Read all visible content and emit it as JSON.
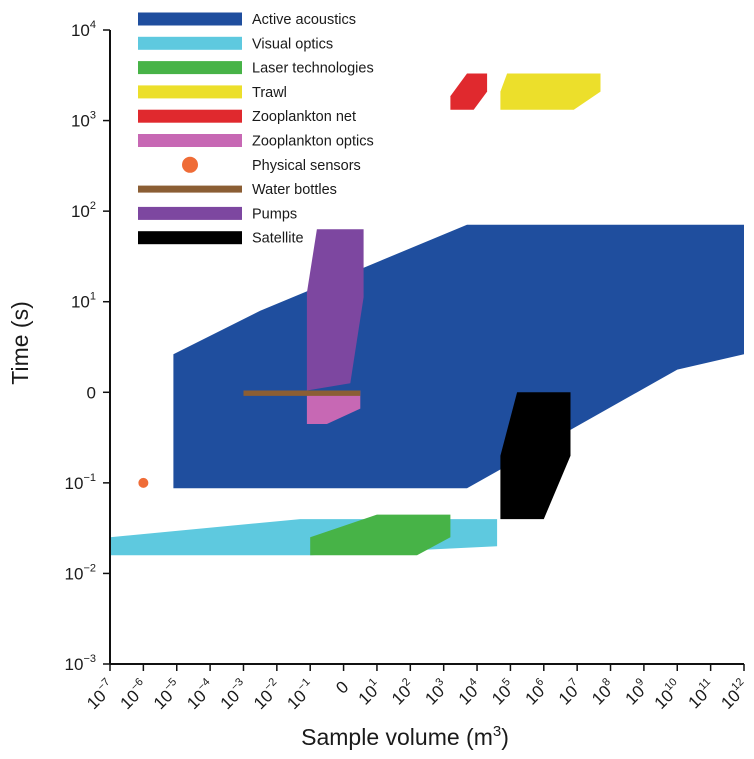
{
  "chart_data": {
    "type": "area",
    "title": "",
    "xlabel": "Sample volume (m",
    "xlabel_sup": "3",
    "xlabel_end": ")",
    "ylabel": "Time (s)",
    "x_scale": "log",
    "y_scale": "log",
    "xlim": [
      -7,
      12
    ],
    "ylim": [
      -3,
      4
    ],
    "grid": false,
    "legend_position": "top-left",
    "x_ticks": [
      {
        "base": "10",
        "exp": "−7"
      },
      {
        "base": "10",
        "exp": "−6"
      },
      {
        "base": "10",
        "exp": "−5"
      },
      {
        "base": "10",
        "exp": "−4"
      },
      {
        "base": "10",
        "exp": "−3"
      },
      {
        "base": "10",
        "exp": "−2"
      },
      {
        "base": "10",
        "exp": "−1"
      },
      {
        "base": "0",
        "exp": ""
      },
      {
        "base": "10",
        "exp": "1"
      },
      {
        "base": "10",
        "exp": "2"
      },
      {
        "base": "10",
        "exp": "3"
      },
      {
        "base": "10",
        "exp": "4"
      },
      {
        "base": "10",
        "exp": "5"
      },
      {
        "base": "10",
        "exp": "6"
      },
      {
        "base": "10",
        "exp": "7"
      },
      {
        "base": "10",
        "exp": "8"
      },
      {
        "base": "10",
        "exp": "9"
      },
      {
        "base": "10",
        "exp": "10"
      },
      {
        "base": "10",
        "exp": "11"
      },
      {
        "base": "10",
        "exp": "12"
      }
    ],
    "y_ticks": [
      {
        "base": "10",
        "exp": "4"
      },
      {
        "base": "10",
        "exp": "3"
      },
      {
        "base": "10",
        "exp": "2"
      },
      {
        "base": "10",
        "exp": "1"
      },
      {
        "base": "0",
        "exp": ""
      },
      {
        "base": "10",
        "exp": "−1"
      },
      {
        "base": "10",
        "exp": "−2"
      },
      {
        "base": "10",
        "exp": "−3"
      }
    ],
    "series": [
      {
        "name": "Active acoustics",
        "color": "#1f4e9e",
        "marker": "band",
        "polygon_log10": [
          [
            -5.1,
            -1.06
          ],
          [
            -5.1,
            0.42
          ],
          [
            -2.5,
            0.9
          ],
          [
            3.7,
            1.85
          ],
          [
            12,
            1.85
          ],
          [
            12,
            0.42
          ],
          [
            10,
            0.25
          ],
          [
            3.7,
            -1.06
          ]
        ]
      },
      {
        "name": "Visual optics",
        "color": "#5ec9df",
        "marker": "band",
        "polygon_log10": [
          [
            -7,
            -1.8
          ],
          [
            -7,
            -1.6
          ],
          [
            -1.3,
            -1.4
          ],
          [
            4.6,
            -1.4
          ],
          [
            4.6,
            -1.7
          ],
          [
            -1,
            -1.8
          ]
        ]
      },
      {
        "name": "Laser technologies",
        "color": "#47b347",
        "marker": "band",
        "polygon_log10": [
          [
            -1,
            -1.8
          ],
          [
            -1,
            -1.6
          ],
          [
            1,
            -1.35
          ],
          [
            3.2,
            -1.35
          ],
          [
            3.2,
            -1.6
          ],
          [
            2.2,
            -1.8
          ]
        ]
      },
      {
        "name": "Trawl",
        "color": "#ecdf2b",
        "marker": "band",
        "polygon_log10": [
          [
            4.7,
            3.32
          ],
          [
            4.9,
            3.52
          ],
          [
            7.7,
            3.52
          ],
          [
            7.7,
            3.32
          ],
          [
            6.9,
            3.12
          ],
          [
            4.7,
            3.12
          ]
        ]
      },
      {
        "name": "Zooplankton net",
        "color": "#e0292e",
        "marker": "band",
        "polygon_log10": [
          [
            3.2,
            3.27
          ],
          [
            3.7,
            3.52
          ],
          [
            4.3,
            3.52
          ],
          [
            4.3,
            3.32
          ],
          [
            3.9,
            3.12
          ],
          [
            3.2,
            3.12
          ]
        ]
      },
      {
        "name": "Zooplankton optics",
        "color": "#c768b4",
        "marker": "band",
        "polygon_log10": [
          [
            -1.1,
            -0.2
          ],
          [
            -1.1,
            0.02
          ],
          [
            -0.8,
            0.02
          ],
          [
            0.5,
            0.02
          ],
          [
            0.5,
            -0.18
          ],
          [
            -0.5,
            -0.35
          ],
          [
            -1.1,
            -0.35
          ]
        ]
      },
      {
        "name": "Physical sensors",
        "color": "#ef6c37",
        "marker": "dot",
        "x_log10": -6,
        "y_log10": -1
      },
      {
        "name": "Water bottles",
        "color": "#8b5e34",
        "marker": "band",
        "polygon_log10": [
          [
            -3,
            0.02
          ],
          [
            0.5,
            0.02
          ],
          [
            0.5,
            -0.04
          ],
          [
            -3,
            -0.04
          ]
        ]
      },
      {
        "name": "Pumps",
        "color": "#7d47a0",
        "marker": "band",
        "polygon_log10": [
          [
            -1.1,
            1.1
          ],
          [
            -0.8,
            1.8
          ],
          [
            0.6,
            1.8
          ],
          [
            0.6,
            1.05
          ],
          [
            0.2,
            0.1
          ],
          [
            -1.1,
            0.02
          ]
        ]
      },
      {
        "name": "Satellite",
        "color": "#000000",
        "marker": "band",
        "polygon_log10": [
          [
            4.7,
            -0.7
          ],
          [
            5.2,
            0
          ],
          [
            6.8,
            0
          ],
          [
            6.8,
            -0.7
          ],
          [
            6,
            -1.4
          ],
          [
            4.7,
            -1.4
          ]
        ]
      }
    ]
  }
}
